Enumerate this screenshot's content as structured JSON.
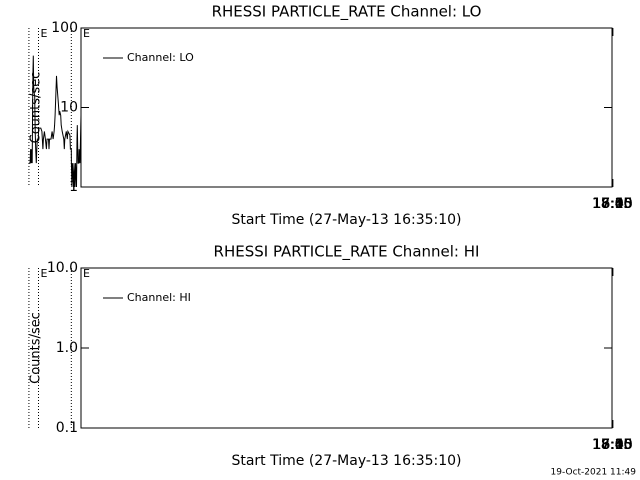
{
  "chart_data": [
    {
      "type": "line",
      "title": "RHESSI PARTICLE_RATE Channel: LO",
      "xlabel": "Start Time (27-May-13 16:35:10)",
      "ylabel": "Counts/sec",
      "ylog": true,
      "ylim": [
        1,
        100
      ],
      "yticks": [
        1,
        10,
        100
      ],
      "xlim": [
        "16:35:10",
        "18:15"
      ],
      "xticks": [
        "16:45",
        "17:00",
        "17:15",
        "17:30",
        "17:45",
        "18:00",
        "18:15"
      ],
      "legend": "top-left",
      "vlines": [
        "16:52:59",
        "17:53:21",
        "18:10:59"
      ],
      "annotations": [
        {
          "x": "16:35:10",
          "text": "E"
        },
        {
          "x": "17:53:21",
          "text": "E"
        }
      ],
      "series": [
        {
          "name": "Channel: LO",
          "color": "#000000",
          "x": [
            "16:35:10",
            "16:36:06",
            "16:37:14",
            "16:38:44",
            "16:39:18",
            "16:40:36",
            "16:41:55",
            "16:42:29",
            "16:43:25",
            "16:45:18",
            "16:46:14",
            "16:48:06",
            "16:49:03",
            "16:50:55",
            "16:51:51",
            "16:52:48",
            "16:52:59",
            "16:54:40",
            "16:55:36",
            "16:59:21",
            "17:00:18",
            "17:02:10",
            "17:04:59",
            "17:05:55",
            "17:06:51",
            "17:09:40",
            "17:11:33",
            "17:12:29",
            "17:14:21",
            "17:15:18",
            "17:17:10",
            "17:19:03",
            "17:20:10",
            "17:21:29",
            "17:22:48",
            "17:23:44",
            "17:24:40",
            "17:26:33",
            "17:28:25",
            "17:30:18",
            "17:33:06",
            "17:34:03",
            "17:34:59",
            "17:37:48",
            "17:38:44",
            "17:40:36",
            "17:42:29",
            "17:44:21",
            "17:45:18",
            "17:47:10",
            "17:49:03",
            "17:51:51",
            "17:53:10",
            "17:53:44",
            "17:55:36",
            "17:56:33",
            "17:57:29",
            "17:58:25",
            "17:59:21",
            "18:00:18",
            "18:01:14",
            "18:02:10",
            "18:02:55",
            "18:03:29",
            "18:04:03",
            "18:04:59",
            "18:05:55",
            "18:06:51",
            "18:07:48",
            "18:08:44",
            "18:10:59"
          ],
          "values": [
            8,
            4,
            2,
            3,
            2,
            2,
            6,
            4,
            1,
            2,
            1,
            2,
            1,
            2,
            1,
            2,
            3,
            3,
            4.5,
            5,
            4,
            5,
            4,
            3,
            4,
            5,
            6,
            8,
            9,
            8,
            12,
            18,
            25,
            14,
            8,
            6,
            5,
            4,
            5,
            4,
            4,
            3,
            4,
            4,
            3,
            4,
            5,
            4,
            3,
            5,
            5.5,
            5.5,
            5.5,
            4,
            4,
            3,
            2,
            3,
            5,
            14,
            15,
            18,
            45,
            30,
            14,
            2,
            3,
            2,
            3,
            2,
            2
          ]
        }
      ]
    },
    {
      "type": "line",
      "title": "RHESSI PARTICLE_RATE Channel: HI",
      "xlabel": "Start Time (27-May-13 16:35:10)",
      "ylabel": "Counts/sec",
      "ylog": true,
      "ylim": [
        0.1,
        10
      ],
      "yticks": [
        0.1,
        {
          "value": 1,
          "label": "1.0"
        },
        {
          "value": 10,
          "label": "10.0"
        }
      ],
      "xlim": [
        "16:35:10",
        "18:15"
      ],
      "xticks": [
        "16:45",
        "17:00",
        "17:15",
        "17:30",
        "17:45",
        "18:00",
        "18:15"
      ],
      "legend": "top-left",
      "vlines": [
        "16:52:59",
        "17:53:21",
        "18:10:59"
      ],
      "annotations": [
        {
          "x": "16:35:10",
          "text": "E"
        },
        {
          "x": "17:53:21",
          "text": "E"
        }
      ],
      "series": [
        {
          "name": "Channel: HI",
          "color": "#000000",
          "x": [],
          "values": []
        }
      ]
    }
  ],
  "timestamp": "19-Oct-2021 11:49"
}
